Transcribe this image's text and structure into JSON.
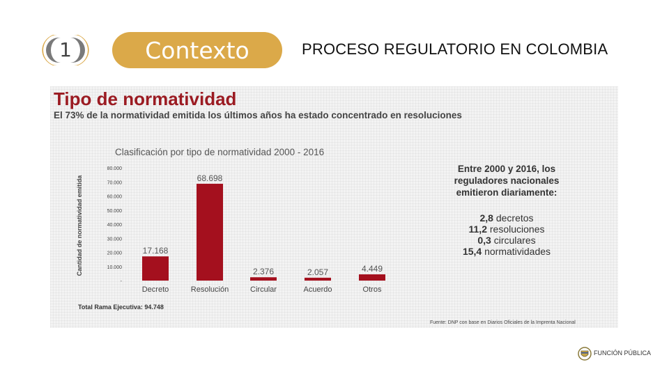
{
  "header": {
    "step_number": "1",
    "section_label": "Contexto",
    "title": "PROCESO REGULATORIO EN COLOMBIA"
  },
  "figure": {
    "title": "Tipo de normatividad",
    "subtitle": "El 73% de la normatividad emitida los últimos años ha estado concentrado en resoluciones",
    "info_heading": [
      "Entre 2000 y 2016, los",
      "reguladores nacionales",
      "emitieron diariamente:"
    ],
    "info_stats": [
      {
        "value": "2,8",
        "label": "decretos"
      },
      {
        "value": "11,2",
        "label": "resoluciones"
      },
      {
        "value": "0,3",
        "label": "circulares"
      },
      {
        "value": "15,4",
        "label": "normatividades"
      }
    ],
    "total": "Total Rama Ejecutiva: 94.748",
    "source": "Fuente: DNP con base en Diarios Oficiales de la Imprenta Nacional"
  },
  "logo": {
    "text": "FUNCIÓN PÚBLICA"
  },
  "colors": {
    "bar": "#a4101e",
    "pill": "#dba949",
    "title": "#9b1b22"
  },
  "chart_data": {
    "type": "bar",
    "title": "Clasificación por tipo de normatividad 2000 - 2016",
    "xlabel": "",
    "ylabel": "Cantidad de normatividad emitida",
    "categories": [
      "Decreto",
      "Resolución",
      "Circular",
      "Acuerdo",
      "Otros"
    ],
    "values": [
      17168,
      68698,
      2376,
      2057,
      4449
    ],
    "value_labels": [
      "17.168",
      "68.698",
      "2.376",
      "2.057",
      "4.449"
    ],
    "yticks": [
      "-",
      "10.000",
      "20.000",
      "30.000",
      "40.000",
      "50.000",
      "60.000",
      "70.000",
      "80.000"
    ],
    "ylim": [
      0,
      80000
    ],
    "grid": false,
    "legend": "none"
  }
}
